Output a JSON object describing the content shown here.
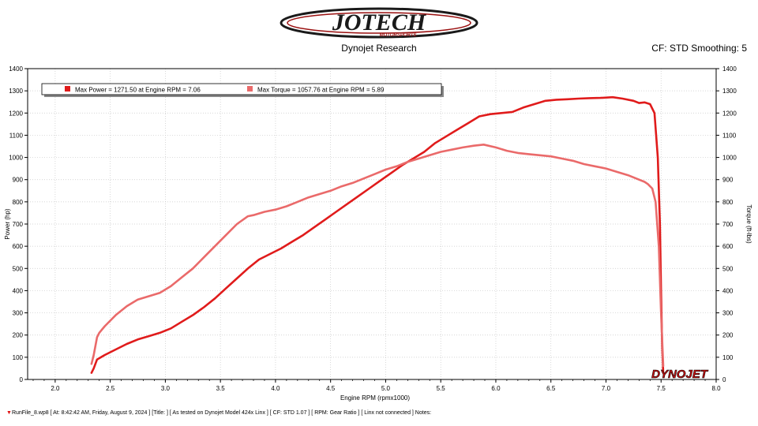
{
  "header": {
    "logo_main": "JOTECH",
    "logo_sub": "MOTORSPORTS",
    "subtitle": "Dynojet Research",
    "cf_info": "CF: STD Smoothing: 5"
  },
  "colors": {
    "power": "#e01b1b",
    "torque": "#ea6a6a",
    "grid": "#c8c8c8",
    "axis": "#000000"
  },
  "chart_data": {
    "type": "line",
    "xlabel": "Engine RPM (rpmx1000)",
    "ylabel_left": "Power (hp)",
    "ylabel_right": "Torque (ft-lbs)",
    "xlim": [
      1.75,
      8.0
    ],
    "ylim": [
      0,
      1400
    ],
    "x_ticks": [
      "2.0",
      "2.5",
      "3.0",
      "3.5",
      "4.0",
      "4.5",
      "5.0",
      "5.5",
      "6.0",
      "6.5",
      "7.0",
      "7.5",
      "8.0"
    ],
    "y_ticks": [
      "0",
      "100",
      "200",
      "300",
      "400",
      "500",
      "600",
      "700",
      "800",
      "900",
      "1000",
      "1100",
      "1200",
      "1300",
      "1400"
    ],
    "grid": true,
    "legend_position": "top-left",
    "series": [
      {
        "name": "Max Power = 1271.50 at Engine RPM = 7.06",
        "color": "#e01b1b",
        "x": [
          2.33,
          2.35,
          2.38,
          2.45,
          2.55,
          2.65,
          2.75,
          2.85,
          2.95,
          3.05,
          3.15,
          3.25,
          3.35,
          3.45,
          3.55,
          3.65,
          3.75,
          3.85,
          3.95,
          4.05,
          4.15,
          4.25,
          4.35,
          4.45,
          4.55,
          4.65,
          4.75,
          4.85,
          4.95,
          5.05,
          5.15,
          5.25,
          5.35,
          5.45,
          5.55,
          5.65,
          5.75,
          5.85,
          5.95,
          6.05,
          6.15,
          6.25,
          6.35,
          6.45,
          6.55,
          6.65,
          6.75,
          6.85,
          6.95,
          7.06,
          7.15,
          7.25,
          7.3,
          7.35,
          7.4,
          7.44,
          7.47,
          7.49,
          7.5,
          7.51,
          7.52
        ],
        "y": [
          30,
          50,
          90,
          110,
          135,
          160,
          180,
          195,
          210,
          230,
          260,
          290,
          325,
          365,
          410,
          455,
          500,
          540,
          565,
          590,
          620,
          650,
          685,
          720,
          755,
          790,
          825,
          860,
          895,
          930,
          965,
          995,
          1025,
          1065,
          1095,
          1125,
          1155,
          1185,
          1195,
          1200,
          1205,
          1225,
          1240,
          1255,
          1260,
          1262,
          1265,
          1267,
          1268,
          1271.5,
          1265,
          1255,
          1245,
          1248,
          1240,
          1200,
          1000,
          700,
          400,
          150,
          30
        ]
      },
      {
        "name": "Max Torque = 1057.76 at Engine RPM = 5.89",
        "color": "#ea6a6a",
        "x": [
          2.33,
          2.35,
          2.38,
          2.4,
          2.45,
          2.55,
          2.65,
          2.75,
          2.85,
          2.95,
          3.05,
          3.15,
          3.25,
          3.35,
          3.45,
          3.55,
          3.65,
          3.75,
          3.8,
          3.9,
          4.0,
          4.1,
          4.2,
          4.3,
          4.4,
          4.5,
          4.6,
          4.7,
          4.8,
          4.9,
          5.0,
          5.1,
          5.2,
          5.3,
          5.4,
          5.5,
          5.6,
          5.7,
          5.8,
          5.89,
          6.0,
          6.1,
          6.2,
          6.3,
          6.4,
          6.5,
          6.6,
          6.7,
          6.8,
          6.9,
          7.0,
          7.1,
          7.2,
          7.3,
          7.35,
          7.38,
          7.42,
          7.45,
          7.48,
          7.5,
          7.52
        ],
        "y": [
          70,
          110,
          190,
          210,
          240,
          290,
          330,
          360,
          375,
          390,
          420,
          460,
          500,
          550,
          600,
          650,
          700,
          735,
          740,
          755,
          765,
          780,
          800,
          820,
          835,
          850,
          870,
          885,
          905,
          925,
          945,
          960,
          980,
          995,
          1010,
          1025,
          1035,
          1045,
          1053,
          1057.76,
          1045,
          1030,
          1020,
          1015,
          1010,
          1005,
          995,
          985,
          970,
          960,
          950,
          935,
          920,
          900,
          890,
          880,
          860,
          800,
          600,
          300,
          60
        ]
      }
    ]
  },
  "footer": {
    "marker": "▼",
    "text": "RunFile_8.wp8 [ At: 8:42:42 AM, Friday, August 9, 2024 ] [Title: ]  [ As tested on Dynojet Model 424x Linx ] [ CF: STD 1.07 ] [ RPM: Gear Ratio ] [ Linx not connected ] Notes:"
  },
  "watermark": "DYNOJET"
}
